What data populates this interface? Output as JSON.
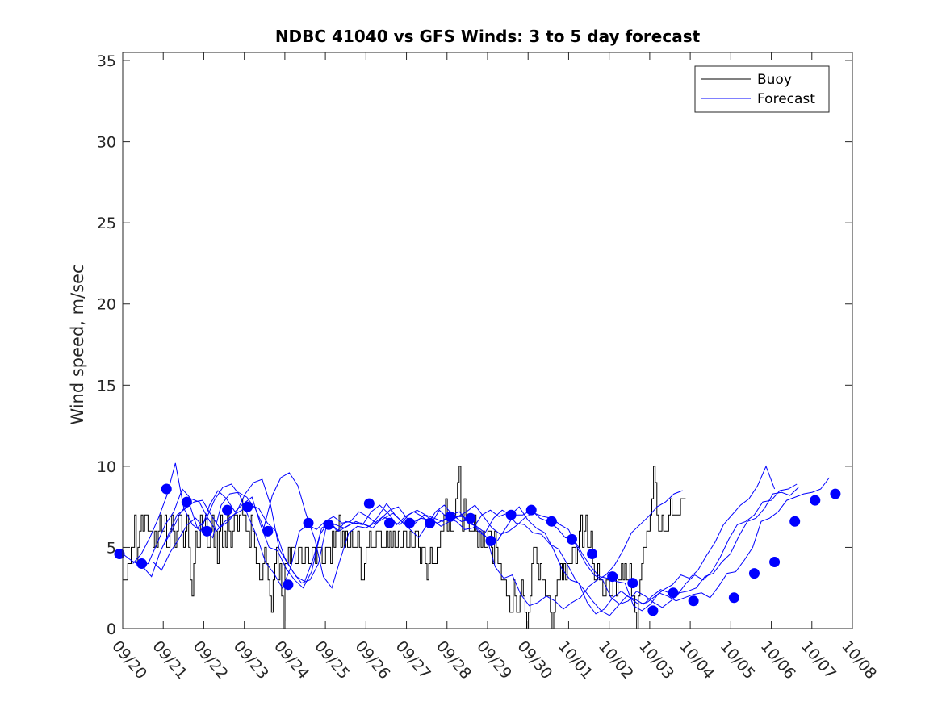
{
  "chart_data": {
    "type": "line",
    "title": "NDBC 41040 vs GFS Winds: 3 to 5 day forecast",
    "xlabel": "",
    "ylabel": "Wind speed, m/sec",
    "ylim": [
      0,
      35.5
    ],
    "yticks": [
      0,
      5,
      10,
      15,
      20,
      25,
      30,
      35
    ],
    "xlim": [
      0,
      18
    ],
    "xtick_labels": [
      "09/20",
      "09/21",
      "09/22",
      "09/23",
      "09/24",
      "09/25",
      "09/26",
      "09/27",
      "09/28",
      "09/29",
      "09/30",
      "10/01",
      "10/02",
      "10/03",
      "10/04",
      "10/05",
      "10/06",
      "10/07",
      "10/08"
    ],
    "legend": {
      "location": "top-right",
      "entries": [
        "Buoy",
        "Forecast"
      ]
    },
    "colors": {
      "buoy": "#000000",
      "forecast": "#0000ff",
      "axis": "#262626"
    },
    "series": [
      {
        "name": "Buoy",
        "x_step_days": 0.0417,
        "values": [
          3,
          3,
          3,
          4,
          4,
          5,
          5,
          7,
          4,
          5,
          6,
          7,
          6,
          7,
          7,
          6,
          6,
          6,
          5,
          6,
          5,
          6,
          7,
          6,
          6,
          7,
          5,
          5,
          6,
          7,
          6,
          5,
          6,
          7,
          7,
          6,
          5,
          6,
          7,
          5,
          3,
          2,
          4,
          6,
          5,
          5,
          7,
          6,
          6,
          7,
          5,
          5,
          6,
          7,
          5,
          6,
          4,
          6,
          7,
          5,
          6,
          5,
          7,
          6,
          5,
          6,
          7,
          7,
          6,
          7,
          8,
          7,
          7,
          6,
          6,
          5,
          7,
          6,
          5,
          4,
          4,
          3,
          3,
          4,
          5,
          4,
          3,
          2,
          1,
          3,
          4,
          5,
          3,
          4,
          2,
          0,
          4,
          4,
          5,
          4,
          5,
          5,
          4,
          4,
          5,
          5,
          4,
          4,
          5,
          5,
          4,
          4,
          5,
          5,
          4,
          5,
          5,
          5,
          4,
          4,
          5,
          5,
          5,
          4,
          6,
          5,
          6,
          6,
          7,
          5,
          6,
          5,
          6,
          5,
          5,
          6,
          5,
          5,
          5,
          6,
          5,
          3,
          3,
          4,
          5,
          5,
          6,
          5,
          5,
          5,
          6,
          6,
          6,
          5,
          5,
          5,
          6,
          5,
          6,
          5,
          6,
          5,
          5,
          6,
          5,
          5,
          6,
          6,
          5,
          5,
          6,
          5,
          5,
          6,
          6,
          5,
          4,
          5,
          5,
          4,
          3,
          4,
          5,
          4,
          4,
          4,
          5,
          5,
          6,
          6,
          7,
          8,
          6,
          7,
          6,
          6,
          7,
          8,
          9,
          10,
          7,
          6,
          8,
          7,
          7,
          6,
          6,
          6,
          7,
          6,
          5,
          6,
          5,
          6,
          5,
          5,
          6,
          6,
          5,
          4,
          6,
          5,
          4,
          4,
          3,
          3,
          3,
          2,
          2,
          1,
          1,
          3,
          2,
          1,
          1,
          2,
          3,
          2,
          1,
          0,
          1,
          2,
          4,
          5,
          5,
          4,
          3,
          4,
          3,
          3,
          2,
          2,
          2,
          1,
          0,
          1,
          2,
          3,
          3,
          4,
          3,
          4,
          3,
          4,
          4,
          4,
          5,
          5,
          4,
          5,
          6,
          7,
          5,
          6,
          7,
          5,
          5,
          6,
          4,
          3,
          3,
          4,
          3,
          3,
          2,
          2,
          3,
          3,
          2,
          2,
          3,
          3,
          2,
          3,
          3,
          4,
          3,
          4,
          3,
          3,
          4,
          2,
          2,
          1,
          0,
          2,
          3,
          4,
          5,
          5,
          6,
          6,
          7,
          8,
          10,
          9,
          7,
          6,
          6,
          7,
          6,
          6,
          6,
          7,
          8,
          7,
          7,
          7,
          7,
          7,
          8,
          8,
          8
        ]
      },
      {
        "name": "Forecast",
        "runs": [
          {
            "t0": 0.0,
            "values": [
              4.6,
              4.2,
              3.9,
              4.0,
              5.2,
              6.4,
              7.2,
              8.6,
              8.0,
              7.8,
              6.8,
              6.0,
              6.6,
              7.0,
              7.3,
              7.6,
              7.4,
              6.5,
              6.0,
              4.4,
              3.5,
              2.8,
              3.0,
              4.0,
              6.5,
              6.4,
              6.2,
              6.5,
              6.5,
              6.3,
              6.9,
              7.7,
              7.0,
              6.5,
              6.5,
              6.8,
              6.7,
              6.5,
              6.8,
              6.9,
              6.9,
              6.5,
              6.0,
              5.5,
              5.4,
              6.2,
              7.0,
              7.0,
              7.3,
              6.8,
              6.6,
              6.2,
              5.6,
              5.5,
              4.6,
              3.8,
              3.2,
              3.1,
              2.9,
              2.8,
              1.4,
              1.1,
              1.5,
              2.2,
              2.0,
              1.7,
              1.9,
              2.1,
              2.2,
              1.9,
              2.6,
              3.4,
              3.5,
              4.2,
              5.0,
              6.6,
              6.8,
              7.2,
              7.9,
              8.1,
              8.3,
              8.4,
              8.6,
              9.3
            ]
          },
          {
            "t0": 0.25,
            "values": [
              4.0,
              4.6,
              5.6,
              6.8,
              8.2,
              10.2,
              7.4,
              6.4,
              6.0,
              7.6,
              8.5,
              8.0,
              7.2,
              7.7,
              8.1,
              6.4,
              5.0,
              4.8,
              3.7,
              3.0,
              2.5,
              3.5,
              5.8,
              6.6,
              6.0,
              6.6,
              6.5,
              6.4,
              7.2,
              7.6,
              7.1,
              6.4,
              6.9,
              7.2,
              6.9,
              6.4,
              7.3,
              6.8,
              6.6,
              6.1,
              6.2,
              7.0,
              7.3,
              6.9,
              7.1,
              6.5,
              6.4,
              5.9,
              5.8,
              5.2,
              4.9,
              4.0,
              3.0,
              2.4,
              1.7,
              1.1,
              0.8,
              1.4,
              2.0,
              1.8,
              1.5,
              2.0,
              2.4,
              2.2,
              2.1,
              2.8,
              3.3,
              3.0,
              3.5,
              4.4,
              5.5,
              6.4,
              6.6,
              7.0,
              7.8,
              7.9,
              8.5,
              8.6,
              8.9
            ]
          },
          {
            "t0": 0.5,
            "values": [
              3.8,
              3.2,
              4.7,
              5.8,
              7.0,
              7.4,
              7.8,
              7.9,
              7.0,
              6.2,
              6.6,
              7.2,
              8.3,
              9.0,
              9.2,
              7.6,
              4.9,
              4.0,
              3.2,
              2.9,
              4.3,
              6.2,
              6.5,
              6.0,
              6.3,
              6.6,
              6.4,
              6.2,
              6.8,
              7.3,
              7.5,
              6.8,
              6.5,
              7.0,
              6.7,
              6.3,
              6.6,
              6.9,
              7.2,
              7.6,
              6.9,
              6.2,
              5.8,
              6.0,
              6.4,
              6.9,
              7.1,
              6.9,
              6.8,
              6.4,
              6.1,
              5.0,
              4.0,
              3.3,
              3.0,
              1.9,
              1.5,
              1.7,
              2.3,
              2.0,
              1.6,
              1.3,
              1.7,
              2.2,
              2.3,
              2.5,
              3.2,
              3.4,
              4.1,
              4.6,
              5.7,
              6.6,
              6.8,
              7.4,
              8.3,
              8.4,
              8.2,
              8.7
            ]
          },
          {
            "t0": 0.75,
            "values": [
              4.1,
              3.6,
              4.7,
              5.5,
              6.4,
              6.8,
              6.2,
              5.6,
              7.6,
              8.3,
              8.4,
              8.1,
              7.4,
              6.2,
              8.2,
              9.3,
              9.6,
              8.8,
              7.0,
              5.5,
              3.2,
              2.5,
              4.3,
              5.9,
              6.3,
              6.2,
              6.5,
              6.9,
              6.6,
              6.4,
              7.0,
              7.3,
              7.0,
              6.8,
              6.6,
              7.0,
              7.2,
              6.5,
              6.3,
              5.9,
              6.8,
              7.3,
              7.0,
              7.5,
              6.7,
              6.2,
              5.9,
              4.9,
              3.7,
              3.0,
              2.8,
              1.6,
              0.9,
              1.2,
              1.9,
              2.3,
              1.9,
              1.5,
              1.6,
              2.0,
              2.4,
              2.7,
              3.3,
              3.1,
              3.6,
              4.5,
              5.3,
              6.4,
              7.0,
              7.6,
              8.0,
              8.8,
              10.0,
              8.6
            ]
          },
          {
            "t0": 1.0,
            "values": [
              5.1,
              6.0,
              7.1,
              7.8,
              6.2,
              6.7,
              7.9,
              8.7,
              8.9,
              8.2,
              6.9,
              5.7,
              4.1,
              3.4,
              2.5,
              3.8,
              6.0,
              6.4,
              6.1,
              6.6,
              6.9,
              6.5,
              6.6,
              7.2,
              6.9,
              6.5,
              6.8,
              7.1,
              6.6,
              6.1,
              5.6,
              6.4,
              7.2,
              7.6,
              7.0,
              6.6,
              6.7,
              6.0,
              5.6,
              3.8,
              3.1,
              3.3,
              2.1,
              1.4,
              1.6,
              2.0,
              1.7,
              1.2,
              1.6,
              1.9,
              2.6,
              3.0,
              3.3,
              3.9,
              4.8,
              5.9,
              6.4,
              6.9,
              7.5,
              7.8,
              8.3,
              8.5
            ]
          }
        ],
        "markers": [
          {
            "x": -0.08,
            "y": 4.6
          },
          {
            "x": 0.47,
            "y": 4.0
          },
          {
            "x": 1.08,
            "y": 8.6
          },
          {
            "x": 1.58,
            "y": 7.8
          },
          {
            "x": 2.08,
            "y": 6.0
          },
          {
            "x": 2.58,
            "y": 7.3
          },
          {
            "x": 3.08,
            "y": 7.5
          },
          {
            "x": 3.58,
            "y": 6.0
          },
          {
            "x": 4.08,
            "y": 2.7
          },
          {
            "x": 4.58,
            "y": 6.5
          },
          {
            "x": 5.08,
            "y": 6.4
          },
          {
            "x": 6.08,
            "y": 7.7
          },
          {
            "x": 6.58,
            "y": 6.5
          },
          {
            "x": 7.08,
            "y": 6.5
          },
          {
            "x": 7.58,
            "y": 6.5
          },
          {
            "x": 8.08,
            "y": 6.9
          },
          {
            "x": 8.58,
            "y": 6.8
          },
          {
            "x": 9.08,
            "y": 5.4
          },
          {
            "x": 9.58,
            "y": 7.0
          },
          {
            "x": 10.08,
            "y": 7.3
          },
          {
            "x": 10.58,
            "y": 6.6
          },
          {
            "x": 11.08,
            "y": 5.5
          },
          {
            "x": 11.58,
            "y": 4.6
          },
          {
            "x": 12.08,
            "y": 3.2
          },
          {
            "x": 12.58,
            "y": 2.8
          },
          {
            "x": 13.08,
            "y": 1.1
          },
          {
            "x": 13.58,
            "y": 2.2
          },
          {
            "x": 14.08,
            "y": 1.7
          },
          {
            "x": 15.08,
            "y": 1.9
          },
          {
            "x": 15.58,
            "y": 3.4
          },
          {
            "x": 16.08,
            "y": 4.1
          },
          {
            "x": 16.58,
            "y": 6.6
          },
          {
            "x": 17.08,
            "y": 7.9
          },
          {
            "x": 17.58,
            "y": 8.3
          }
        ]
      }
    ]
  }
}
